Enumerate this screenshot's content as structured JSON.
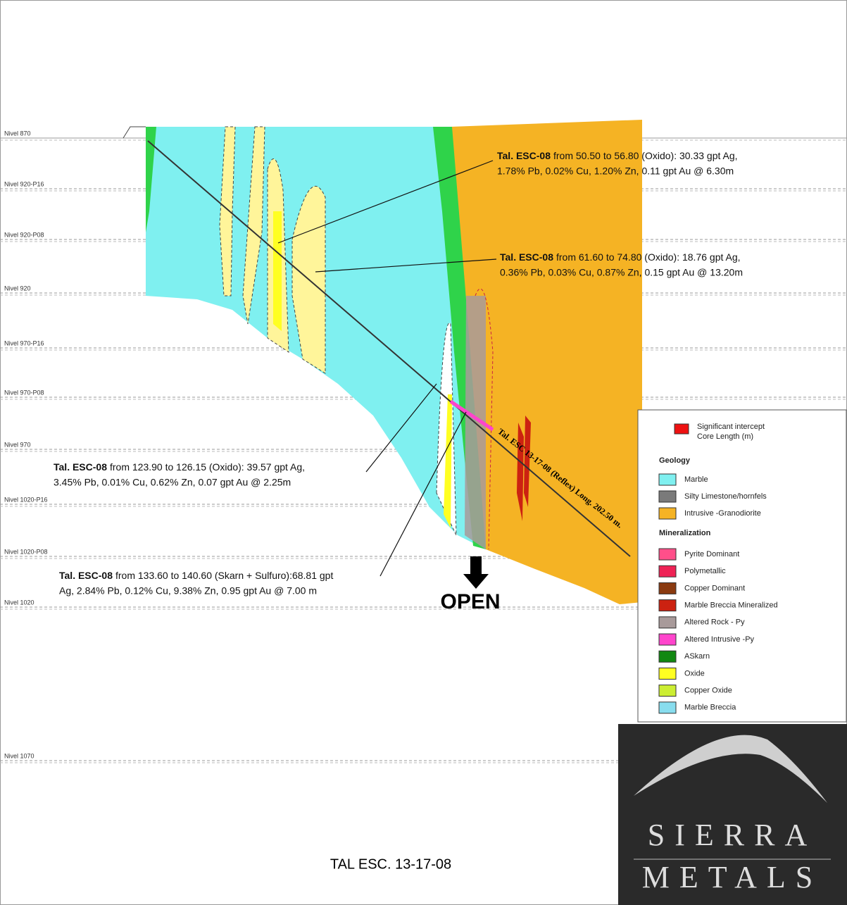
{
  "title": "TAL ESC. 13-17-08",
  "open_label": "OPEN",
  "levels": [
    "Nivel 870",
    "Nivel 920-P16",
    "Nivel 920-P08",
    "Nivel 920",
    "Nivel 970-P16",
    "Nivel 970-P08",
    "Nivel 970",
    "Nivel 1020-P16",
    "Nivel 1020-P08",
    "Nivel 1020",
    "Nivel 1070"
  ],
  "drillhole_label": "Tal. ESC 13-17-08 (Reflex) Long. 202.50 m.",
  "annotations": [
    {
      "hole": "Tal. ESC-08",
      "lines": [
        "from 50.50 to 56.80 (Oxido): 30.33 gpt Ag,",
        "1.78% Pb, 0.02% Cu, 1.20% Zn, 0.11 gpt Au @ 6.30m"
      ]
    },
    {
      "hole": "Tal. ESC-08",
      "lines": [
        "from 61.60 to 74.80 (Oxido): 18.76 gpt Ag,",
        "0.36% Pb, 0.03% Cu, 0.87% Zn, 0.15 gpt Au @ 13.20m"
      ]
    },
    {
      "hole": "Tal. ESC-08",
      "lines": [
        "from 123.90 to 126.15 (Oxido): 39.57 gpt Ag,",
        "3.45% Pb, 0.01% Cu, 0.62% Zn, 0.07 gpt Au @ 2.25m"
      ]
    },
    {
      "hole": "Tal. ESC-08",
      "lines": [
        "from 133.60 to 140.60 (Skarn + Sulfuro):68.81 gpt",
        "Ag, 2.84% Pb, 0.12% Cu, 9.38% Zn, 0.95 gpt Au @ 7.00 m"
      ]
    }
  ],
  "legend": {
    "intercept": [
      "Significant intercept",
      "Core Length (m)"
    ],
    "geology_title": "Geology",
    "geology": [
      {
        "label": "Marble",
        "color": "#7ff0f0"
      },
      {
        "label": "Silty Limestone/hornfels",
        "color": "#7a7a7a"
      },
      {
        "label": "Intrusive -Granodiorite",
        "color": "#f5b324"
      }
    ],
    "mineralization_title": "Mineralization",
    "mineralization": [
      {
        "label": "Pyrite Dominant",
        "color": "#ff4f8a"
      },
      {
        "label": "Polymetallic",
        "color": "#ee2255"
      },
      {
        "label": "Copper Dominant",
        "color": "#8a3a10"
      },
      {
        "label": "Marble Breccia Mineralized",
        "color": "#cc2211"
      },
      {
        "label": "Altered Rock - Py",
        "color": "#a89a9a"
      },
      {
        "label": "Altered Intrusive -Py",
        "color": "#ff44cc"
      },
      {
        "label": "ASkarn",
        "color": "#118811"
      },
      {
        "label": "Oxide",
        "color": "#ffff22"
      },
      {
        "label": "Copper Oxide",
        "color": "#ccee33"
      },
      {
        "label": "Marble Breccia",
        "color": "#88ddee"
      }
    ]
  },
  "logo": {
    "line1": "SIERRA",
    "line2": "METALS"
  }
}
